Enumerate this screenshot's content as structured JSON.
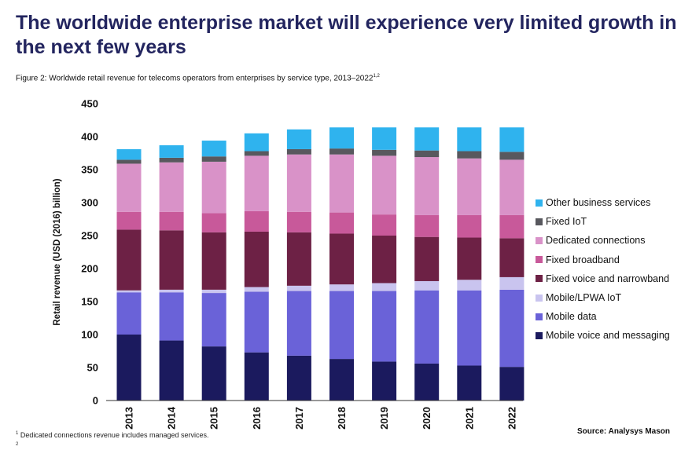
{
  "title": "The worldwide enterprise market will experience very limited growth in the next few years",
  "caption": {
    "text": "Figure 2: Worldwide retail revenue for telecoms operators from enterprises by service type, 2013–2022",
    "superscript": "1,2"
  },
  "footnotes": {
    "note1_marker": "1",
    "note1_text": "Dedicated connections revenue includes managed services.",
    "note2_marker": "2"
  },
  "source": "Source: Analysys Mason",
  "colors": {
    "mobile_voice": "#1b1a5e",
    "mobile_data": "#6a62d8",
    "mobile_iot": "#c9c4ef",
    "fixed_voice": "#6d2145",
    "fixed_broadband": "#c8599a",
    "dedicated": "#d992c8",
    "fixed_iot": "#58585e",
    "other": "#2fb3ee"
  },
  "chart_data": {
    "type": "bar",
    "stacked": true,
    "categories": [
      "2013",
      "2014",
      "2015",
      "2016",
      "2017",
      "2018",
      "2019",
      "2020",
      "2021",
      "2022"
    ],
    "ylabel": "Retail revenue (USD (2016) billion)",
    "xlabel": "",
    "ylim": [
      0,
      450
    ],
    "yticks": [
      0,
      50,
      100,
      150,
      200,
      250,
      300,
      350,
      400,
      450
    ],
    "legend_position": "right",
    "grid": false,
    "series": [
      {
        "name": "Mobile voice and messaging",
        "color": "#1b1a5e",
        "values": [
          100,
          91,
          82,
          73,
          68,
          63,
          59,
          56,
          53,
          51
        ]
      },
      {
        "name": "Mobile data",
        "color": "#6a62d8",
        "values": [
          64,
          73,
          81,
          92,
          98,
          103,
          107,
          111,
          114,
          117
        ]
      },
      {
        "name": "Mobile/LPWA IoT",
        "color": "#c9c4ef",
        "values": [
          3,
          4,
          5,
          7,
          8,
          10,
          12,
          14,
          16,
          19
        ]
      },
      {
        "name": "Fixed voice and narrowband",
        "color": "#6d2145",
        "values": [
          92,
          90,
          87,
          84,
          81,
          77,
          72,
          67,
          64,
          59
        ]
      },
      {
        "name": "Fixed broadband",
        "color": "#c8599a",
        "values": [
          27,
          28,
          29,
          31,
          31,
          32,
          32,
          33,
          34,
          35
        ]
      },
      {
        "name": "Dedicated connections",
        "color": "#d992c8",
        "values": [
          73,
          75,
          78,
          84,
          87,
          88,
          89,
          88,
          86,
          84
        ]
      },
      {
        "name": "Fixed IoT",
        "color": "#58585e",
        "values": [
          6,
          7,
          8,
          7,
          8,
          9,
          9,
          10,
          11,
          12
        ]
      },
      {
        "name": "Other business services",
        "color": "#2fb3ee",
        "values": [
          16,
          19,
          24,
          27,
          30,
          32,
          34,
          35,
          36,
          37
        ]
      }
    ]
  }
}
